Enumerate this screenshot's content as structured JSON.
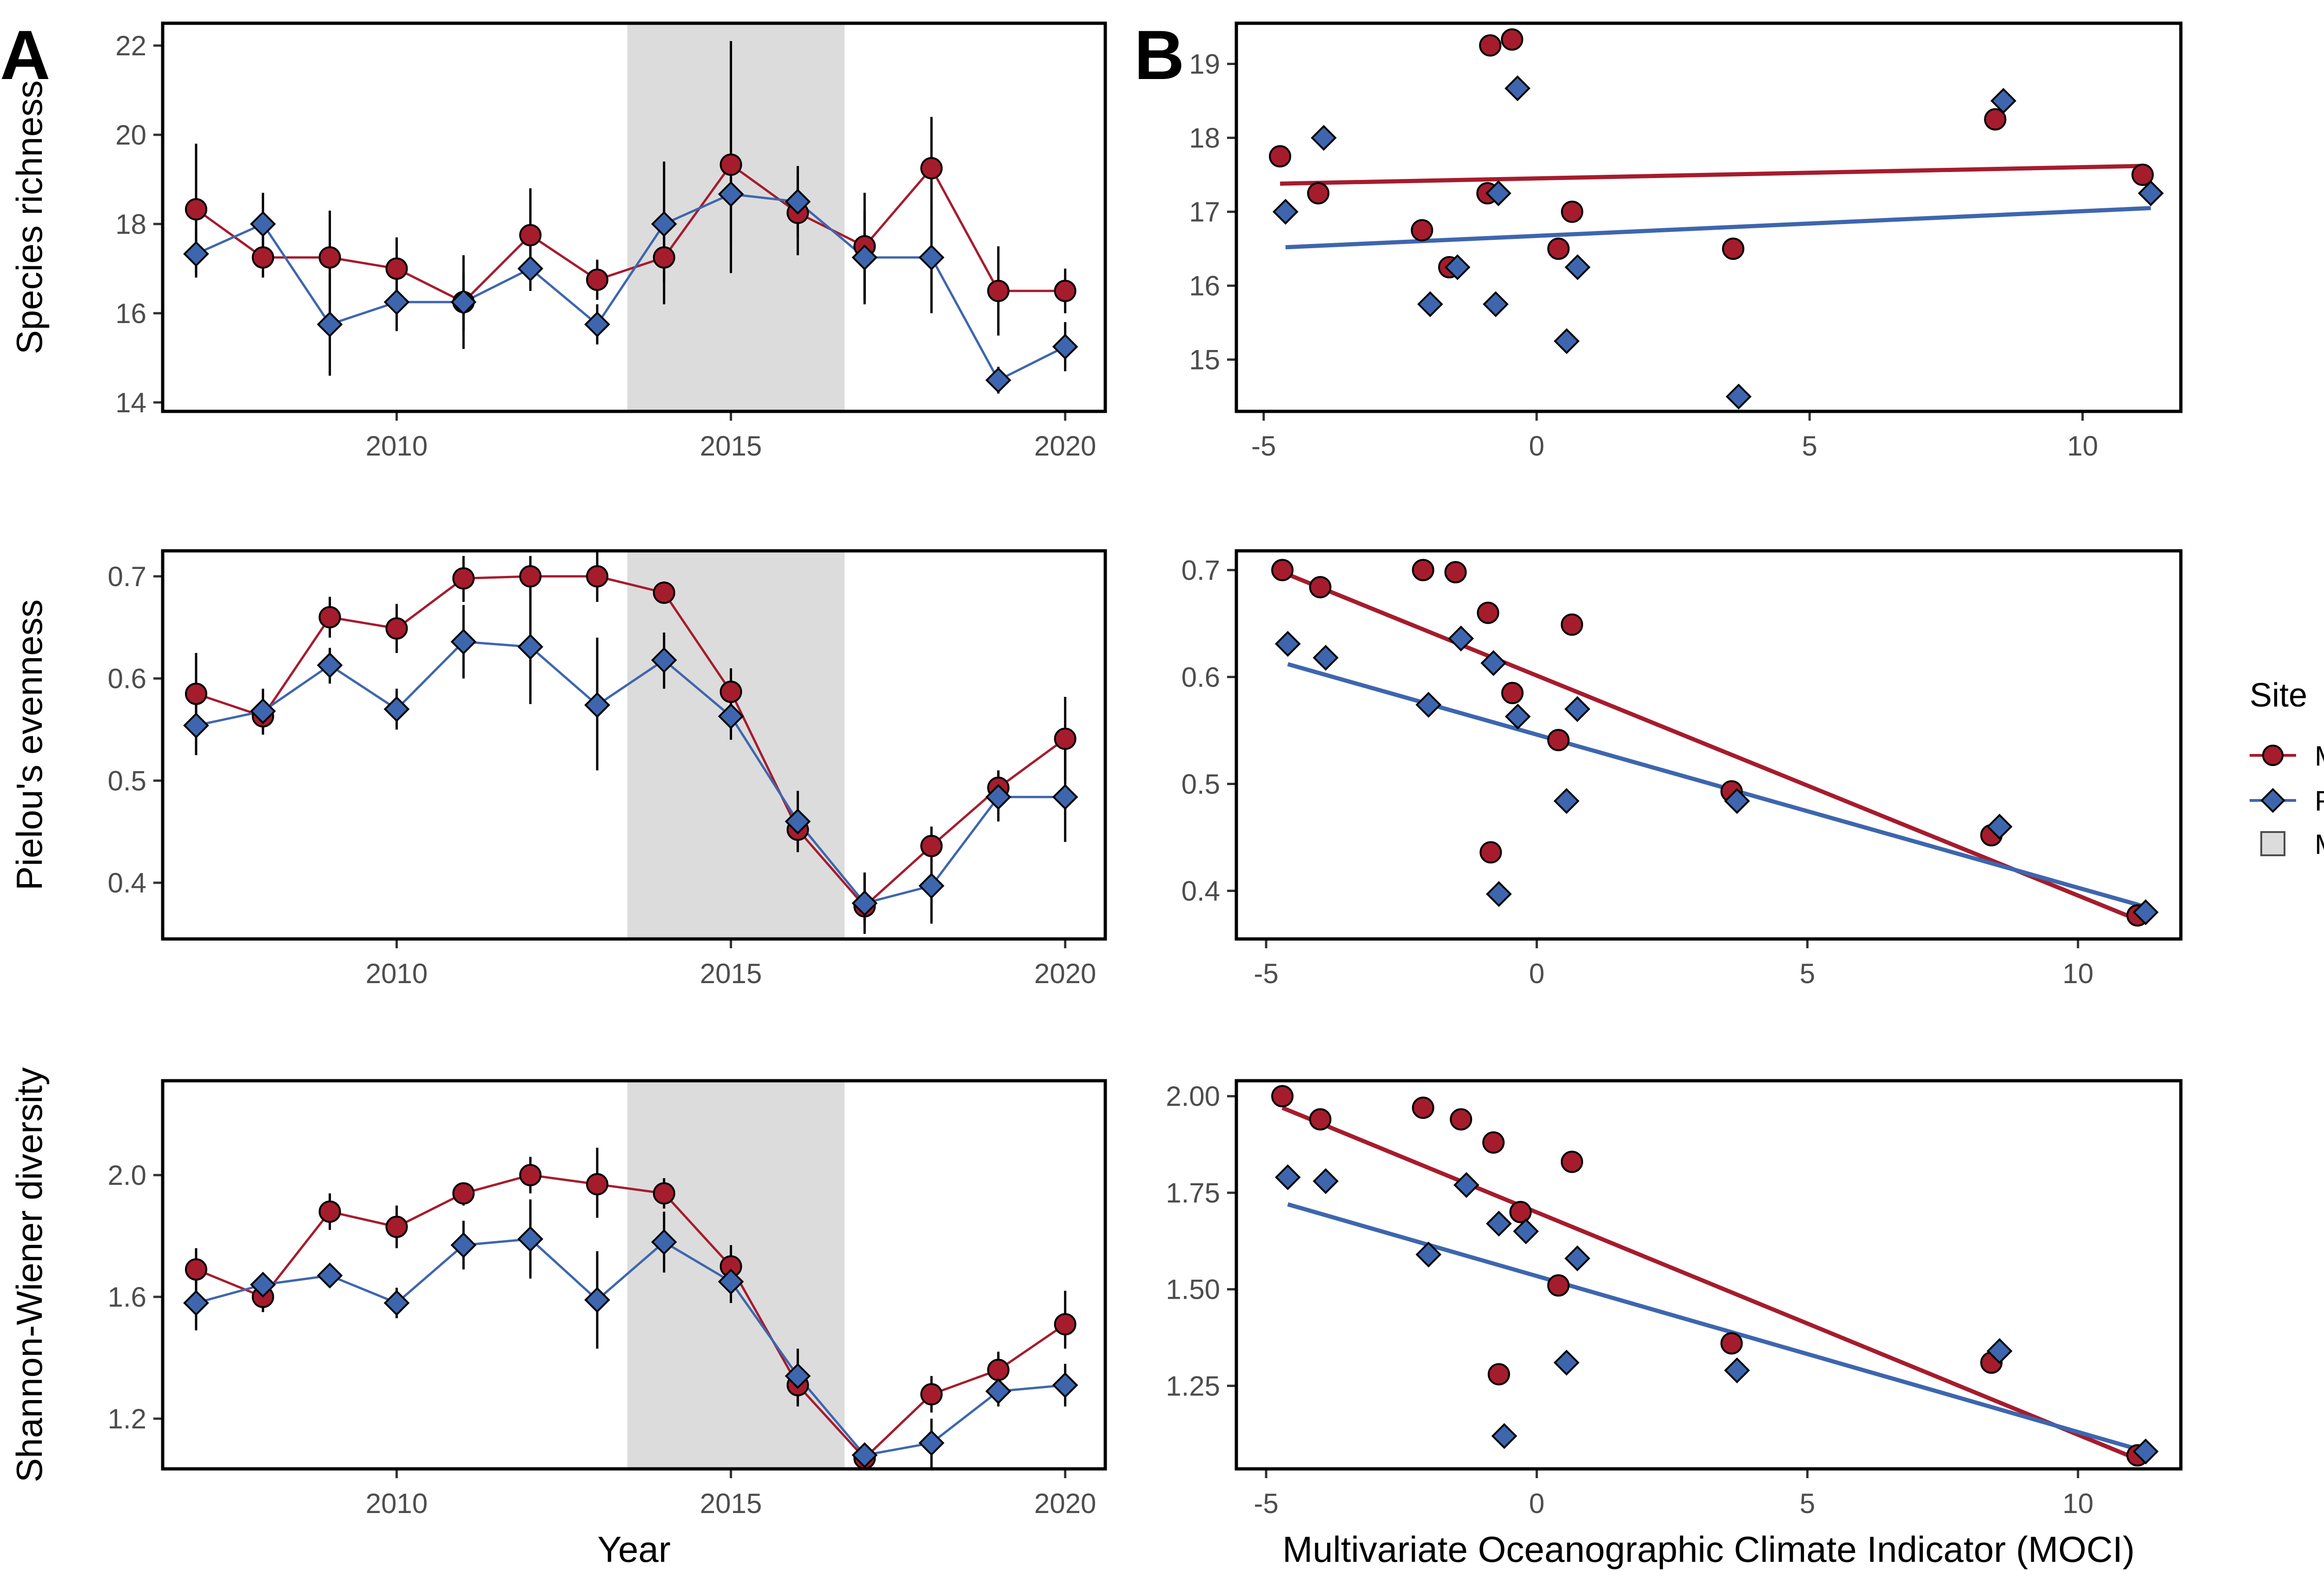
{
  "colors": {
    "mpa": "#A51C2D",
    "ref": "#3E66AE",
    "mhw": "#DCDCDC",
    "errorbar": "#000000"
  },
  "panel_labels": [
    "A",
    "B"
  ],
  "legend": {
    "title": "Site",
    "items": [
      {
        "label": "MPA",
        "shape": "circle",
        "color": "#A51C2D"
      },
      {
        "label": "REF",
        "shape": "diamond",
        "color": "#3E66AE"
      },
      {
        "label": "MHW",
        "shape": "square",
        "color": "#DCDCDC"
      }
    ]
  },
  "chart_data": [
    {
      "type": "line",
      "panel": "A",
      "xlabel": "",
      "ylabel": "Species richness",
      "xlim": [
        2006.5,
        2020.6
      ],
      "ylim": [
        13.8,
        22.5
      ],
      "xticks": [
        2010,
        2015,
        2020
      ],
      "yticks": [
        14,
        16,
        18,
        20,
        22
      ],
      "shade": [
        2013.45,
        2016.7
      ],
      "x": [
        2007,
        2008,
        2009,
        2010,
        2011,
        2012,
        2013,
        2014,
        2015,
        2016,
        2017,
        2018,
        2019,
        2020
      ],
      "series": [
        {
          "name": "MPA",
          "values": [
            18.33,
            17.25,
            17.25,
            17.0,
            16.25,
            17.75,
            16.75,
            17.25,
            19.33,
            18.25,
            17.5,
            19.25,
            16.5,
            16.5
          ],
          "err_low": [
            16.9,
            16.8,
            16.2,
            16.3,
            15.6,
            16.9,
            16.3,
            16.2,
            17.6,
            17.3,
            16.3,
            18.2,
            15.5,
            16.0
          ],
          "err_high": [
            19.8,
            17.7,
            18.3,
            17.7,
            16.9,
            18.8,
            17.2,
            18.3,
            22.1,
            19.2,
            18.7,
            20.4,
            17.5,
            17.0
          ]
        },
        {
          "name": "REF",
          "values": [
            17.33,
            18.0,
            15.75,
            16.25,
            16.25,
            17.0,
            15.75,
            18.0,
            18.67,
            18.5,
            17.25,
            17.25,
            14.5,
            15.25
          ],
          "err_low": [
            16.8,
            17.3,
            14.6,
            15.6,
            15.2,
            16.5,
            15.3,
            16.7,
            16.9,
            17.7,
            16.2,
            16.0,
            14.2,
            14.7
          ],
          "err_high": [
            17.9,
            18.7,
            16.9,
            16.9,
            17.3,
            17.5,
            16.2,
            19.4,
            20.6,
            19.3,
            18.3,
            18.5,
            14.8,
            15.8
          ]
        }
      ]
    },
    {
      "type": "line",
      "panel": "A",
      "xlabel": "",
      "ylabel": "Pielou's evenness",
      "xlim": [
        2006.5,
        2020.6
      ],
      "ylim": [
        0.345,
        0.725
      ],
      "xticks": [
        2010,
        2015,
        2020
      ],
      "yticks": [
        0.4,
        0.5,
        0.6,
        0.7
      ],
      "yformat": "1",
      "shade": [
        2013.45,
        2016.7
      ],
      "x": [
        2007,
        2008,
        2009,
        2010,
        2011,
        2012,
        2013,
        2014,
        2015,
        2016,
        2017,
        2018,
        2019,
        2020
      ],
      "series": [
        {
          "name": "MPA",
          "values": [
            0.585,
            0.563,
            0.66,
            0.649,
            0.698,
            0.7,
            0.7,
            0.684,
            0.587,
            0.452,
            0.377,
            0.436,
            0.493,
            0.541
          ],
          "err_low": [
            0.545,
            0.55,
            0.64,
            0.625,
            0.675,
            0.68,
            0.675,
            0.675,
            0.565,
            0.435,
            0.35,
            0.42,
            0.475,
            0.5
          ],
          "err_high": [
            0.625,
            0.575,
            0.68,
            0.673,
            0.72,
            0.72,
            0.725,
            0.695,
            0.61,
            0.47,
            0.41,
            0.455,
            0.51,
            0.582
          ]
        },
        {
          "name": "REF",
          "values": [
            0.554,
            0.568,
            0.613,
            0.57,
            0.636,
            0.631,
            0.574,
            0.618,
            0.563,
            0.46,
            0.38,
            0.397,
            0.484,
            0.484
          ],
          "err_low": [
            0.525,
            0.545,
            0.595,
            0.55,
            0.6,
            0.575,
            0.51,
            0.59,
            0.54,
            0.43,
            0.36,
            0.36,
            0.46,
            0.44
          ],
          "err_high": [
            0.585,
            0.59,
            0.63,
            0.59,
            0.672,
            0.687,
            0.64,
            0.645,
            0.585,
            0.49,
            0.41,
            0.435,
            0.51,
            0.53
          ]
        }
      ]
    },
    {
      "type": "line",
      "panel": "A",
      "xlabel": "Year",
      "ylabel": "Shannon-Wiener diversity",
      "xlim": [
        2006.5,
        2020.6
      ],
      "ylim": [
        1.035,
        2.31
      ],
      "xticks": [
        2010,
        2015,
        2020
      ],
      "yticks": [
        1.2,
        1.6,
        2.0
      ],
      "yformat": "1",
      "shade": [
        2013.45,
        2016.7
      ],
      "x": [
        2007,
        2008,
        2009,
        2010,
        2011,
        2012,
        2013,
        2014,
        2015,
        2016,
        2017,
        2018,
        2019,
        2020
      ],
      "series": [
        {
          "name": "MPA",
          "values": [
            1.69,
            1.6,
            1.88,
            1.83,
            1.94,
            2.0,
            1.97,
            1.94,
            1.7,
            1.31,
            1.07,
            1.28,
            1.36,
            1.51
          ],
          "err_low": [
            1.62,
            1.55,
            1.82,
            1.76,
            1.9,
            1.94,
            1.86,
            1.89,
            1.63,
            1.24,
            1.05,
            1.22,
            1.3,
            1.43
          ],
          "err_high": [
            1.76,
            1.66,
            1.94,
            1.9,
            1.97,
            2.06,
            2.09,
            1.99,
            1.77,
            1.38,
            1.09,
            1.34,
            1.42,
            1.62
          ]
        },
        {
          "name": "REF",
          "values": [
            1.58,
            1.64,
            1.67,
            1.58,
            1.77,
            1.79,
            1.59,
            1.78,
            1.65,
            1.34,
            1.08,
            1.12,
            1.29,
            1.31
          ],
          "err_low": [
            1.49,
            1.6,
            1.64,
            1.53,
            1.69,
            1.66,
            1.43,
            1.68,
            1.58,
            1.25,
            1.05,
            1.04,
            1.24,
            1.24
          ],
          "err_high": [
            1.67,
            1.68,
            1.7,
            1.63,
            1.85,
            1.92,
            1.75,
            1.88,
            1.72,
            1.43,
            1.11,
            1.2,
            1.34,
            1.38
          ]
        }
      ]
    },
    {
      "type": "scatter",
      "panel": "B",
      "xlabel": "",
      "ylabel": "",
      "xlim": [
        -5.5,
        11.8
      ],
      "ylim": [
        14.3,
        19.55
      ],
      "xticks": [
        -5,
        0,
        5,
        10
      ],
      "yticks": [
        15,
        16,
        17,
        18,
        19
      ],
      "series": [
        {
          "name": "MPA",
          "x": [
            -4.7,
            -4.0,
            -2.1,
            -1.6,
            -0.9,
            -0.85,
            -0.45,
            0.4,
            0.65,
            3.6,
            8.4,
            11.1
          ],
          "y": [
            17.75,
            17.25,
            16.75,
            16.25,
            17.25,
            19.25,
            19.33,
            16.5,
            17.0,
            16.5,
            18.25,
            17.5
          ],
          "fit": [
            [
              -4.7,
              17.38
            ],
            [
              11.1,
              17.62
            ]
          ]
        },
        {
          "name": "REF",
          "x": [
            -4.6,
            -3.9,
            -1.95,
            -1.45,
            -0.75,
            -0.7,
            -0.35,
            0.55,
            0.75,
            3.7,
            8.55,
            11.25
          ],
          "y": [
            17.0,
            18.0,
            15.75,
            16.25,
            15.75,
            17.25,
            18.67,
            15.25,
            16.25,
            14.5,
            18.5,
            17.25
          ],
          "fit": [
            [
              -4.6,
              16.52
            ],
            [
              11.25,
              17.05
            ]
          ]
        }
      ]
    },
    {
      "type": "scatter",
      "panel": "B",
      "xlabel": "",
      "ylabel": "",
      "xlim": [
        -5.55,
        11.9
      ],
      "ylim": [
        0.355,
        0.718
      ],
      "xticks": [
        -5,
        0,
        5,
        10
      ],
      "yticks": [
        0.4,
        0.5,
        0.6,
        0.7
      ],
      "yformat": "1",
      "series": [
        {
          "name": "MPA",
          "x": [
            -4.7,
            -4.0,
            -2.1,
            -1.5,
            -0.9,
            -0.85,
            -0.45,
            0.4,
            0.65,
            3.6,
            8.4,
            11.1
          ],
          "y": [
            0.7,
            0.684,
            0.7,
            0.698,
            0.66,
            0.436,
            0.585,
            0.541,
            0.649,
            0.493,
            0.452,
            0.377
          ],
          "fit": [
            [
              -4.7,
              0.698
            ],
            [
              11.1,
              0.373
            ]
          ]
        },
        {
          "name": "REF",
          "x": [
            -4.6,
            -3.9,
            -2.0,
            -1.4,
            -0.8,
            -0.7,
            -0.35,
            0.55,
            0.75,
            3.7,
            8.55,
            11.25
          ],
          "y": [
            0.631,
            0.618,
            0.574,
            0.636,
            0.613,
            0.397,
            0.563,
            0.484,
            0.57,
            0.484,
            0.46,
            0.38
          ],
          "fit": [
            [
              -4.6,
              0.612
            ],
            [
              11.25,
              0.385
            ]
          ]
        }
      ]
    },
    {
      "type": "scatter",
      "panel": "B",
      "xlabel": "Multivariate Oceanographic Climate Indicator (MOCI)",
      "ylabel": "",
      "xlim": [
        -5.55,
        11.9
      ],
      "ylim": [
        1.035,
        2.04
      ],
      "xticks": [
        -5,
        0,
        5,
        10
      ],
      "yticks": [
        1.25,
        1.5,
        1.75,
        2.0
      ],
      "yformat": "2",
      "series": [
        {
          "name": "MPA",
          "x": [
            -4.7,
            -4.0,
            -2.1,
            -1.4,
            -0.8,
            -0.7,
            -0.3,
            0.4,
            0.65,
            3.6,
            8.4,
            11.1
          ],
          "y": [
            2.0,
            1.94,
            1.97,
            1.94,
            1.88,
            1.28,
            1.7,
            1.51,
            1.83,
            1.36,
            1.31,
            1.07
          ],
          "fit": [
            [
              -4.7,
              1.97
            ],
            [
              11.1,
              1.06
            ]
          ]
        },
        {
          "name": "REF",
          "x": [
            -4.6,
            -3.9,
            -2.0,
            -1.3,
            -0.7,
            -0.6,
            -0.2,
            0.55,
            0.75,
            3.7,
            8.55,
            11.25
          ],
          "y": [
            1.79,
            1.78,
            1.59,
            1.77,
            1.67,
            1.12,
            1.65,
            1.31,
            1.58,
            1.29,
            1.34,
            1.08
          ],
          "fit": [
            [
              -4.6,
              1.72
            ],
            [
              11.25,
              1.08
            ]
          ]
        }
      ]
    }
  ]
}
